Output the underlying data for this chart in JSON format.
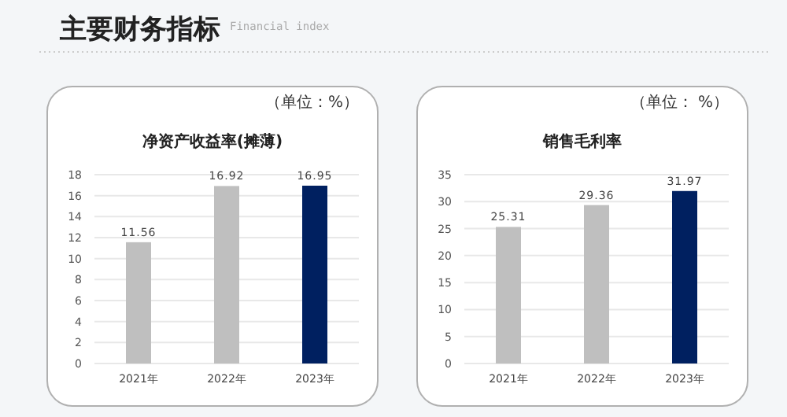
{
  "chart_data": [
    {
      "type": "bar",
      "title": "净资产收益率(摊薄)",
      "annotations": [
        "主要财务指标",
        "Financial index",
        "（单位：%）"
      ],
      "categories": [
        "2021年",
        "2022年",
        "2023年"
      ],
      "series": [
        {
          "colors": [
            "#bfbfbf",
            "#bfbfbf",
            "#002060"
          ],
          "values": [
            11.56,
            16.92,
            16.95
          ]
        }
      ],
      "ylim": [
        0,
        18
      ],
      "yticks": [
        0,
        2,
        4,
        6,
        8,
        10,
        12,
        14,
        16,
        18
      ],
      "grid": "y",
      "data_labels": true
    },
    {
      "type": "bar",
      "title": "销售毛利率",
      "annotations": [
        "（单位： %）"
      ],
      "categories": [
        "2021年",
        "2022年",
        "2023年"
      ],
      "series": [
        {
          "colors": [
            "#bfbfbf",
            "#bfbfbf",
            "#002060"
          ],
          "values": [
            25.31,
            29.36,
            31.97
          ]
        }
      ],
      "ylim": [
        0,
        35
      ],
      "yticks": [
        0,
        5,
        10,
        15,
        20,
        25,
        30,
        35
      ],
      "grid": "y",
      "data_labels": true
    }
  ]
}
